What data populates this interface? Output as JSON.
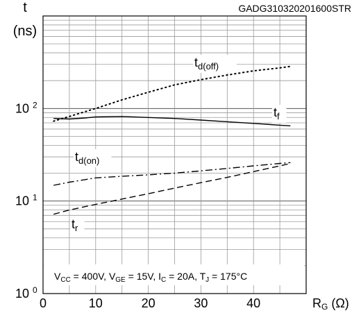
{
  "chart_data": {
    "type": "line",
    "code": "GADG310320201600STR",
    "ylabel": "t",
    "yunit": "(ns)",
    "xlabel": "R",
    "xlabel_sub": "G",
    "xunit": "(Ω)",
    "xlim": [
      0,
      50
    ],
    "ylim": [
      1,
      1000
    ],
    "yscale": "log",
    "x_ticks": [
      "0",
      "10",
      "20",
      "30",
      "40"
    ],
    "y_ticks": [
      {
        "value": 1,
        "base": "10",
        "exp": "0"
      },
      {
        "value": 10,
        "base": "10",
        "exp": "1"
      },
      {
        "value": 100,
        "base": "10",
        "exp": "2"
      }
    ],
    "grid": true,
    "annotation": {
      "parts": [
        {
          "t": "V"
        },
        {
          "t": "CC",
          "sub": true
        },
        {
          "t": " = 400V, V"
        },
        {
          "t": "GE",
          "sub": true
        },
        {
          "t": " = 15V, I"
        },
        {
          "t": "C",
          "sub": true
        },
        {
          "t": " = 20A, T"
        },
        {
          "t": "J",
          "sub": true
        },
        {
          "t": " = 175°C"
        }
      ]
    },
    "series": [
      {
        "name": "t",
        "name_sub": "d(off)",
        "dash": "dotted",
        "x": [
          2,
          5,
          10,
          15,
          20,
          25,
          30,
          35,
          40,
          45,
          47
        ],
        "y": [
          73,
          82,
          100,
          124,
          150,
          180,
          205,
          230,
          255,
          275,
          285
        ]
      },
      {
        "name": "t",
        "name_sub": "f",
        "dash": "solid",
        "x": [
          2,
          5,
          8,
          10,
          15,
          20,
          25,
          30,
          35,
          40,
          45,
          47
        ],
        "y": [
          78,
          77,
          79,
          81,
          82,
          80,
          78,
          75,
          72,
          69,
          66,
          65
        ]
      },
      {
        "name": "t",
        "name_sub": "d(on)",
        "dash": "dashdot",
        "x": [
          2,
          5,
          10,
          15,
          20,
          25,
          30,
          35,
          40,
          45,
          47
        ],
        "y": [
          14.8,
          16,
          17.8,
          18.5,
          19.2,
          20,
          21.2,
          22.5,
          24,
          25.5,
          26
        ]
      },
      {
        "name": "t",
        "name_sub": "r",
        "dash": "dashed",
        "x": [
          2,
          5,
          10,
          15,
          20,
          25,
          30,
          35,
          40,
          45,
          47
        ],
        "y": [
          7.2,
          8,
          9.2,
          10.5,
          12,
          13.8,
          15.8,
          18,
          20.8,
          24,
          25.5
        ]
      }
    ]
  }
}
